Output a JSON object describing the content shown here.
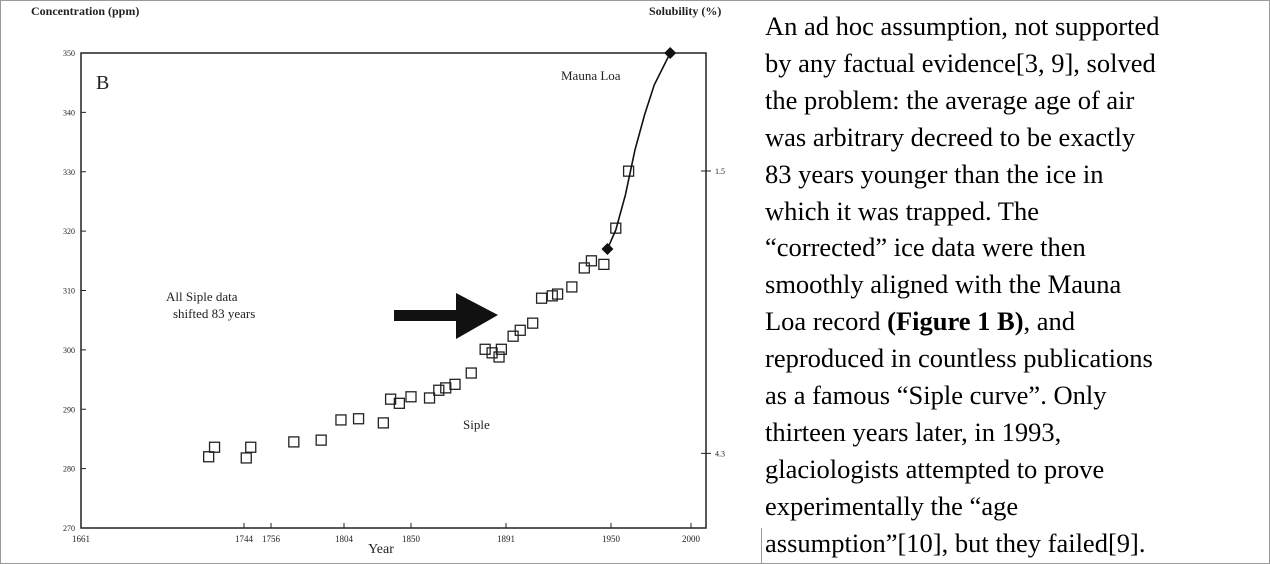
{
  "chart_data": {
    "type": "scatter",
    "label": "B",
    "ylabel": "Concentration (ppm)",
    "y2label": "Solubility (%)",
    "xlabel": "Year",
    "annotation": [
      "All Siple data",
      "shifted 83 years"
    ],
    "xlim": [
      1661,
      2000
    ],
    "xticks": [
      1661,
      1744,
      1756,
      1804,
      1850,
      1891,
      1950,
      2000
    ],
    "ylim": [
      270,
      350
    ],
    "yticks": [
      270,
      280,
      290,
      300,
      310,
      320,
      330,
      340,
      350
    ],
    "y2lim": [
      5.04,
      0.33
    ],
    "y2ticks": [
      1.5,
      4.3
    ],
    "series": [
      {
        "name": "Siple",
        "color": "#222222",
        "marker": "square",
        "x": [
          1726,
          1729,
          1745,
          1747,
          1771,
          1789,
          1802,
          1814,
          1831,
          1836,
          1842,
          1850,
          1858,
          1862,
          1865,
          1869,
          1876,
          1882,
          1885,
          1888,
          1889,
          1895,
          1899,
          1906,
          1911,
          1917,
          1920,
          1928,
          1935,
          1939,
          1946,
          1953,
          1961
        ],
        "values": [
          282.0,
          283.6,
          281.8,
          283.6,
          284.5,
          284.8,
          288.2,
          288.4,
          287.7,
          291.7,
          291.0,
          292.1,
          291.9,
          293.2,
          293.6,
          294.2,
          296.1,
          300.1,
          299.5,
          298.8,
          300.1,
          302.3,
          303.3,
          304.5,
          308.7,
          309.1,
          309.4,
          310.6,
          313.8,
          315.0,
          314.4,
          320.5,
          330.1
        ]
      },
      {
        "name": "Mauna Loa",
        "color": "#111111",
        "marker": "diamond",
        "x": [
          1948,
          1953,
          1959,
          1965,
          1971,
          1977,
          1987
        ],
        "values": [
          317.0,
          320.2,
          326.1,
          333.7,
          339.6,
          344.6,
          350
        ]
      }
    ]
  },
  "text": {
    "lines": [
      "An ad hoc assumption, not supported",
      "by any factual evidence[3, 9], solved",
      "the problem: the average age of air",
      "was arbitrary decreed to be exactly",
      "83 years younger than the ice in",
      "which it was trapped. The",
      "“corrected” ice data were then",
      "smoothly aligned with the Mauna",
      {
        "runs": [
          {
            "text": "Loa record "
          },
          {
            "text": "(Figure 1 B)",
            "bold": true
          },
          {
            "text": ", and"
          }
        ]
      },
      "reproduced in countless publications",
      "as a famous “Siple curve”. Only",
      "thirteen years later, in 1993,",
      "glaciologists attempted to prove",
      "experimentally the “age",
      "assumption”[10], but they failed[9]."
    ]
  }
}
